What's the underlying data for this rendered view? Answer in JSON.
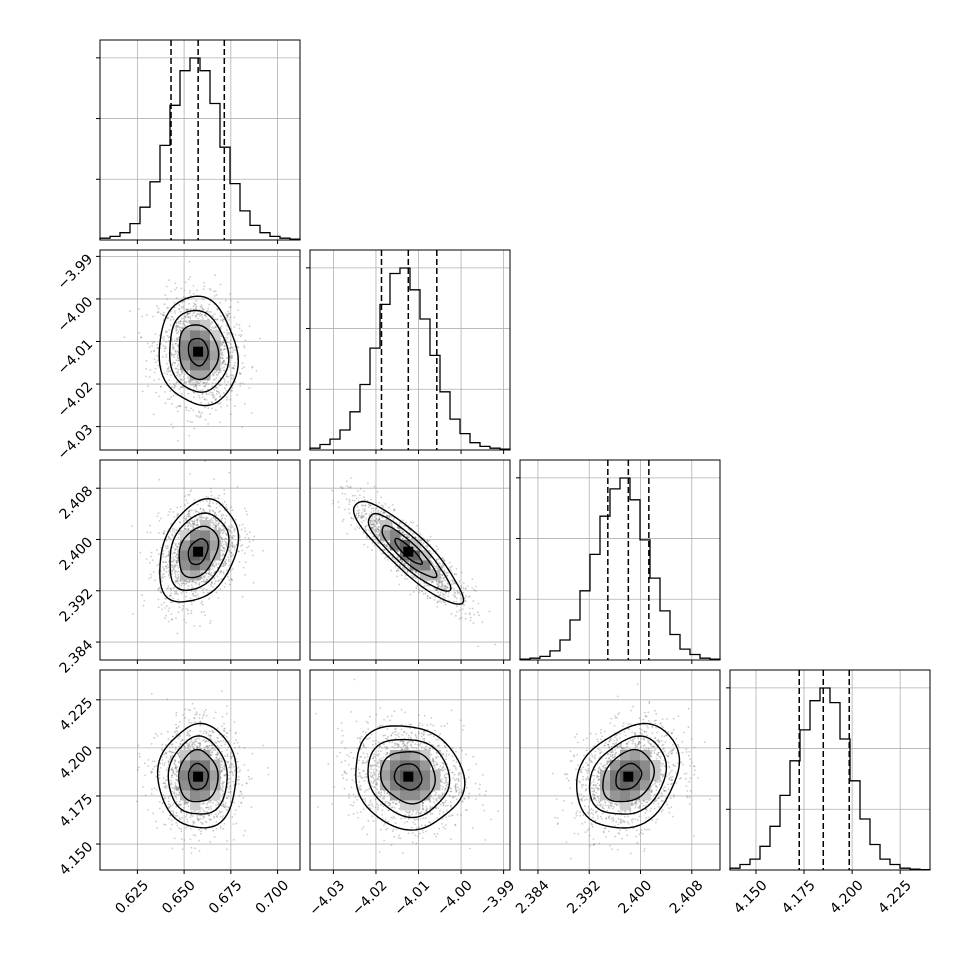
{
  "chart_data": {
    "type": "corner",
    "params": [
      {
        "range": [
          0.605,
          0.712
        ],
        "ticks": [
          0.625,
          0.65,
          0.675,
          0.7
        ],
        "tick_labels": [
          "0.625",
          "0.650",
          "0.675",
          "0.700"
        ],
        "quantiles": [
          0.643,
          0.6575,
          0.6715
        ]
      },
      {
        "range": [
          -4.0355,
          -3.9885
        ],
        "ticks": [
          -4.03,
          -4.02,
          -4.01,
          -4.0,
          -3.99
        ],
        "tick_labels": [
          "−4.03",
          "−4.02",
          "−4.01",
          "−4.00",
          "−3.99"
        ],
        "quantiles": [
          -4.0187,
          -4.0124,
          -4.0057
        ]
      },
      {
        "range": [
          2.3812,
          2.4124
        ],
        "ticks": [
          2.384,
          2.392,
          2.4,
          2.408
        ],
        "tick_labels": [
          "2.384",
          "2.392",
          "2.400",
          "2.408"
        ],
        "quantiles": [
          2.3949,
          2.3981,
          2.4013
        ]
      },
      {
        "range": [
          4.1365,
          4.2405
        ],
        "ticks": [
          4.15,
          4.175,
          4.2,
          4.225
        ],
        "tick_labels": [
          "4.150",
          "4.175",
          "4.200",
          "4.225"
        ],
        "quantiles": [
          4.1725,
          4.185,
          4.1985
        ]
      }
    ],
    "histograms": [
      [
        1,
        2,
        4,
        9,
        18,
        32,
        52,
        74,
        93,
        100,
        93,
        75,
        51,
        31,
        16,
        8,
        4,
        2,
        1,
        0.5
      ],
      [
        1,
        3,
        6,
        11,
        21,
        36,
        56,
        80,
        97,
        100,
        88,
        72,
        52,
        32,
        17,
        9,
        4,
        2,
        1,
        0.5
      ],
      [
        0.5,
        1,
        2,
        5,
        11,
        22,
        38,
        58,
        79,
        94,
        100,
        88,
        66,
        45,
        27,
        14,
        6,
        3,
        1,
        0.5
      ],
      [
        1,
        3,
        6,
        13,
        24,
        41,
        60,
        77,
        93,
        100,
        92,
        72,
        49,
        28,
        14,
        6,
        3,
        1,
        0.5,
        0.2
      ]
    ],
    "covariance": {
      "sigma": [
        0.0105,
        0.0064,
        0.004,
        0.0135
      ],
      "rho": [
        [
          1,
          -0.1,
          0.3,
          0.0
        ],
        [
          -0.1,
          1,
          -0.88,
          -0.1
        ],
        [
          0.3,
          -0.88,
          1,
          0.25
        ],
        [
          0.0,
          -0.1,
          0.25,
          1
        ]
      ]
    },
    "grid": true
  }
}
